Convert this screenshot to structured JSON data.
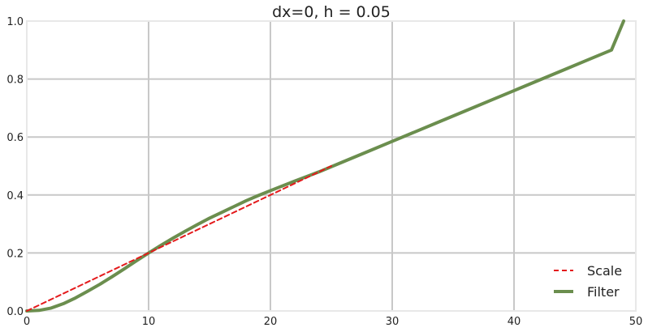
{
  "chart_data": {
    "type": "line",
    "title": "dx=0, h = 0.05",
    "xlabel": "",
    "ylabel": "",
    "xlim": [
      0,
      50
    ],
    "ylim": [
      0,
      1.0
    ],
    "x_ticks": [
      "0",
      "10",
      "20",
      "30",
      "40",
      "50"
    ],
    "y_ticks": [
      "0.0",
      "0.2",
      "0.4",
      "0.6",
      "0.8",
      "1.0"
    ],
    "grid": true,
    "legend_position": "bottom-right",
    "series": [
      {
        "name": "Scale",
        "style": "dashed",
        "color": "#e41a1c",
        "x": [
          0,
          5,
          10,
          15,
          20,
          25
        ],
        "y": [
          0.0,
          0.1,
          0.2,
          0.3,
          0.4,
          0.5
        ]
      },
      {
        "name": "Filter",
        "style": "solid",
        "color": "#6b8e4e",
        "x": [
          0,
          1,
          2,
          3,
          4,
          5,
          6,
          7,
          8,
          9,
          10,
          11,
          12,
          13,
          14,
          15,
          16,
          17,
          18,
          19,
          20,
          22,
          24,
          26,
          28,
          30,
          32,
          34,
          36,
          38,
          40,
          42,
          44,
          46,
          48,
          49
        ],
        "y": [
          0.0,
          0.002,
          0.01,
          0.025,
          0.045,
          0.068,
          0.092,
          0.118,
          0.145,
          0.173,
          0.2,
          0.226,
          0.251,
          0.275,
          0.298,
          0.32,
          0.34,
          0.36,
          0.38,
          0.398,
          0.415,
          0.448,
          0.48,
          0.515,
          0.55,
          0.585,
          0.62,
          0.655,
          0.69,
          0.725,
          0.76,
          0.795,
          0.83,
          0.865,
          0.9,
          1.0
        ]
      }
    ]
  }
}
